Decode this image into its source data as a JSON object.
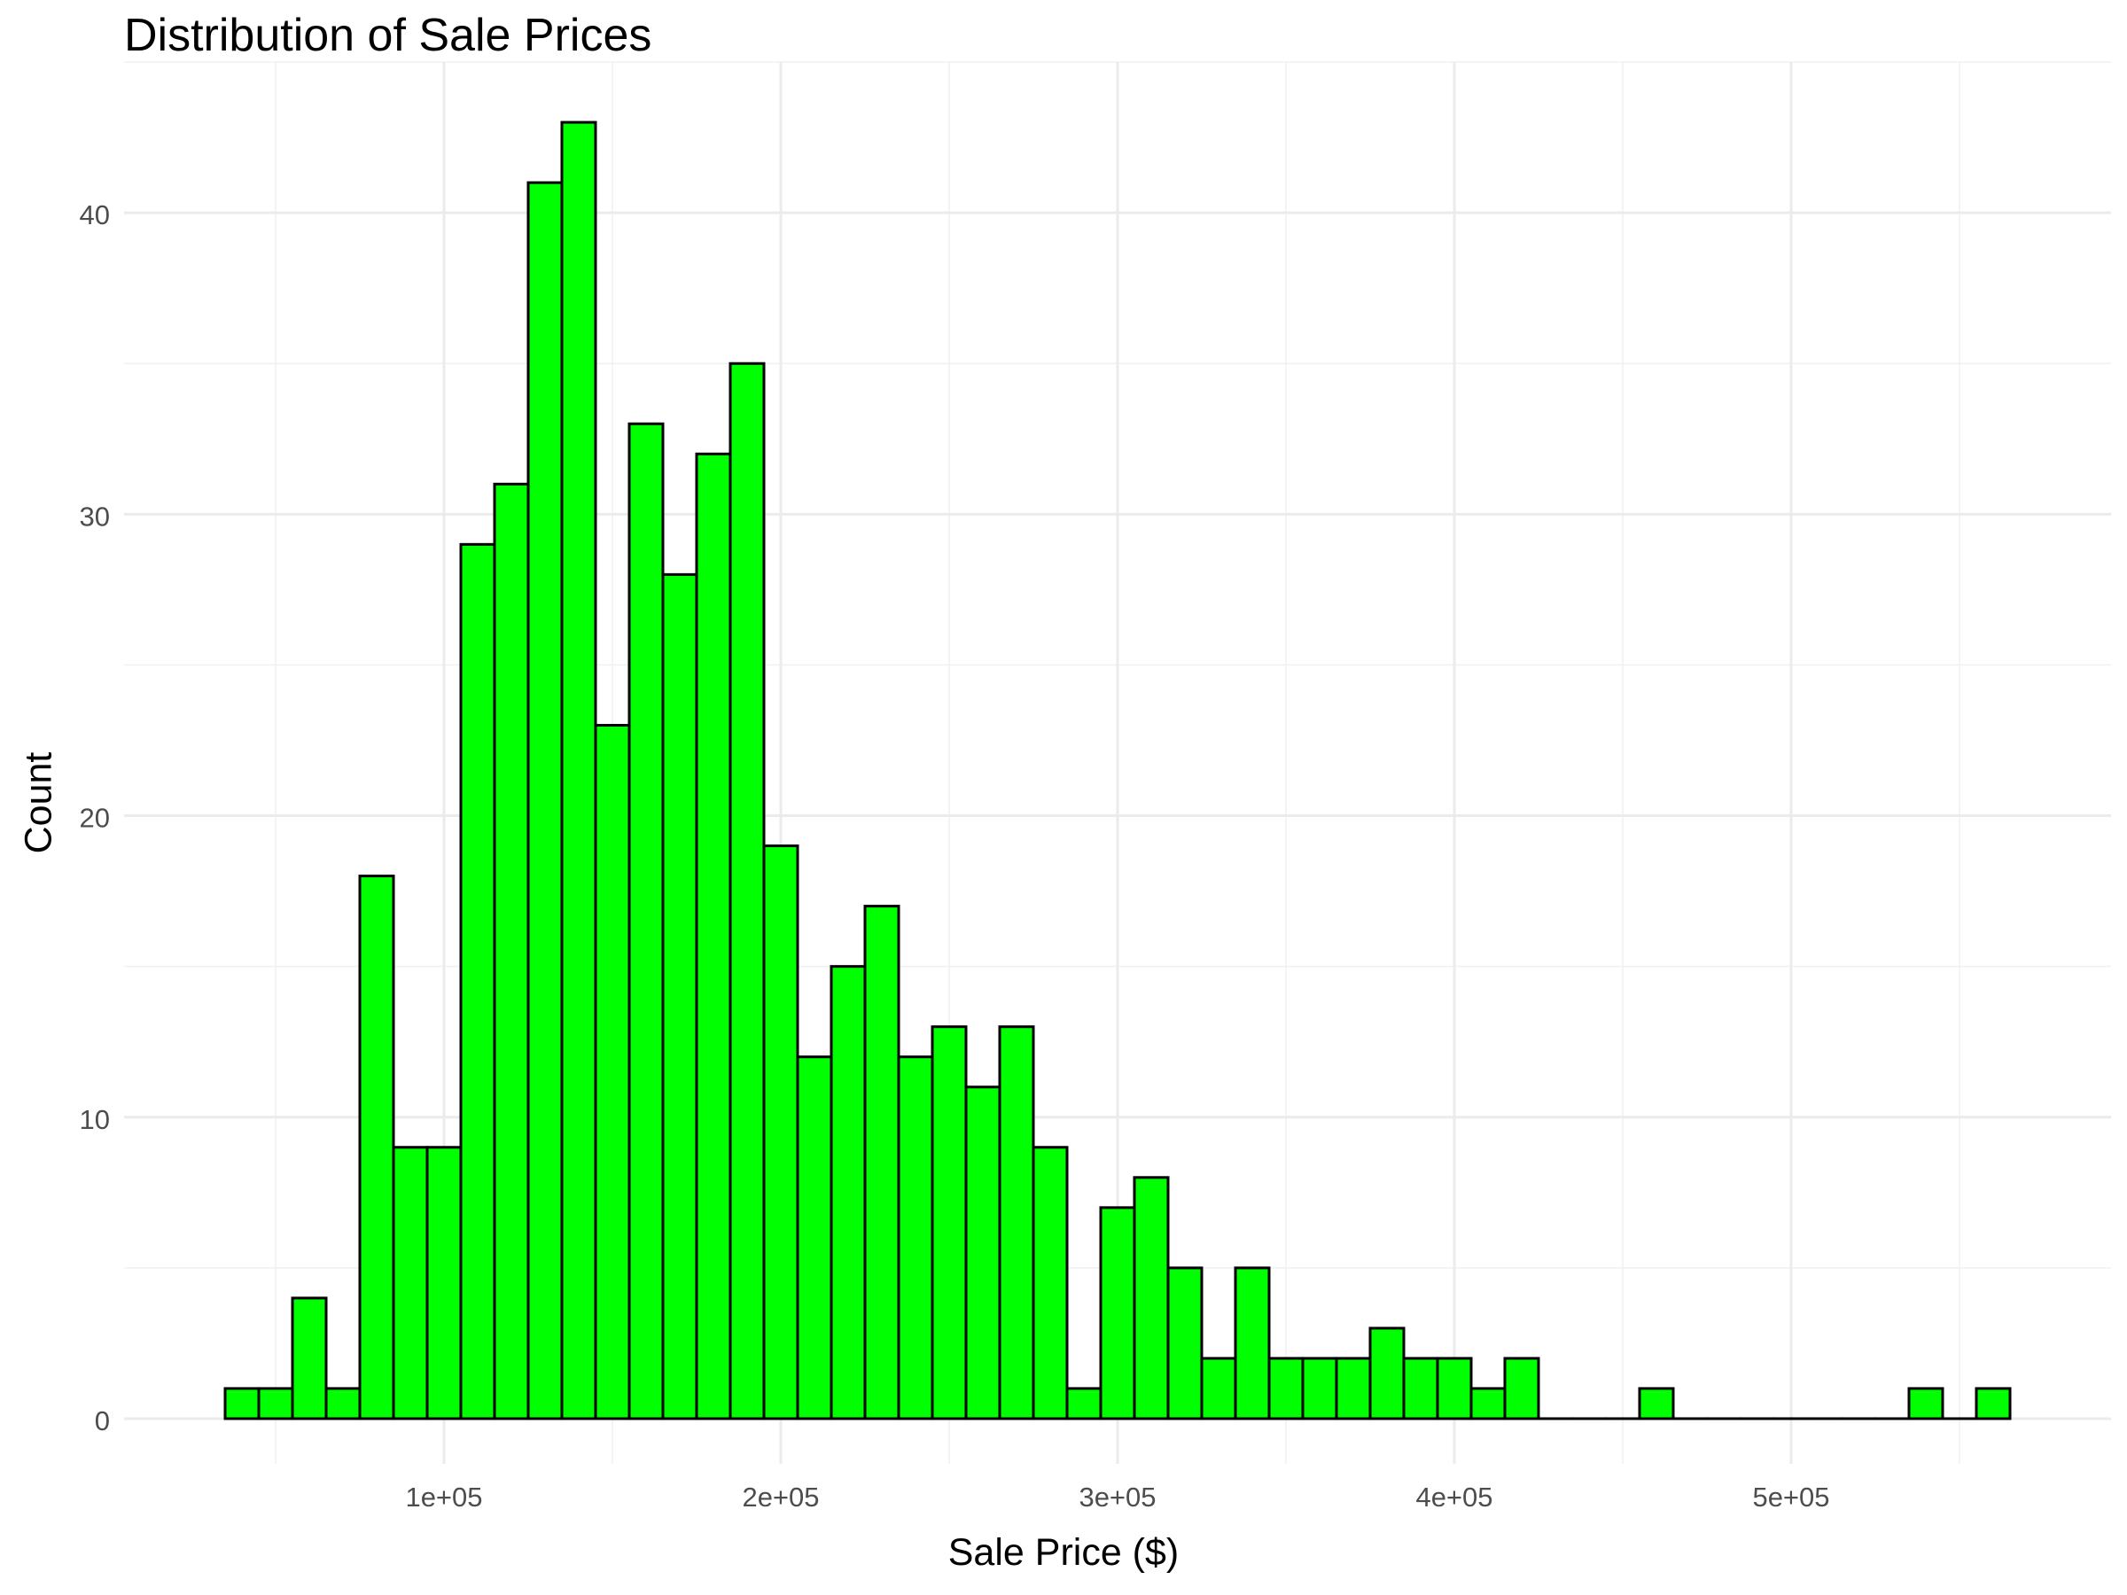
{
  "chart_data": {
    "type": "histogram",
    "title": "Distribution of Sale Prices",
    "xlabel": "Sale Price ($)",
    "ylabel": "Count",
    "bin_width": 10000,
    "x_start": 35000,
    "counts": [
      1,
      1,
      4,
      1,
      18,
      9,
      9,
      29,
      31,
      41,
      43,
      23,
      33,
      28,
      32,
      35,
      19,
      12,
      15,
      17,
      12,
      13,
      11,
      13,
      9,
      1,
      7,
      8,
      5,
      2,
      5,
      2,
      2,
      2,
      3,
      2,
      2,
      1,
      2,
      0,
      0,
      0,
      1,
      0,
      0,
      0,
      0,
      0,
      0,
      0,
      1,
      0,
      1
    ],
    "xlim": [
      5000,
      595000
    ],
    "ylim": [
      -1.5,
      45
    ],
    "x_ticks": [
      100000,
      200000,
      300000,
      400000,
      500000
    ],
    "x_tick_labels": [
      "1e+05",
      "2e+05",
      "3e+05",
      "4e+05",
      "5e+05"
    ],
    "y_ticks": [
      0,
      10,
      20,
      30,
      40
    ],
    "y_tick_labels": [
      "0",
      "10",
      "20",
      "30",
      "40"
    ],
    "bar_fill": "#00ff00",
    "bar_outline": "#000000",
    "grid": true,
    "legend": "none"
  }
}
